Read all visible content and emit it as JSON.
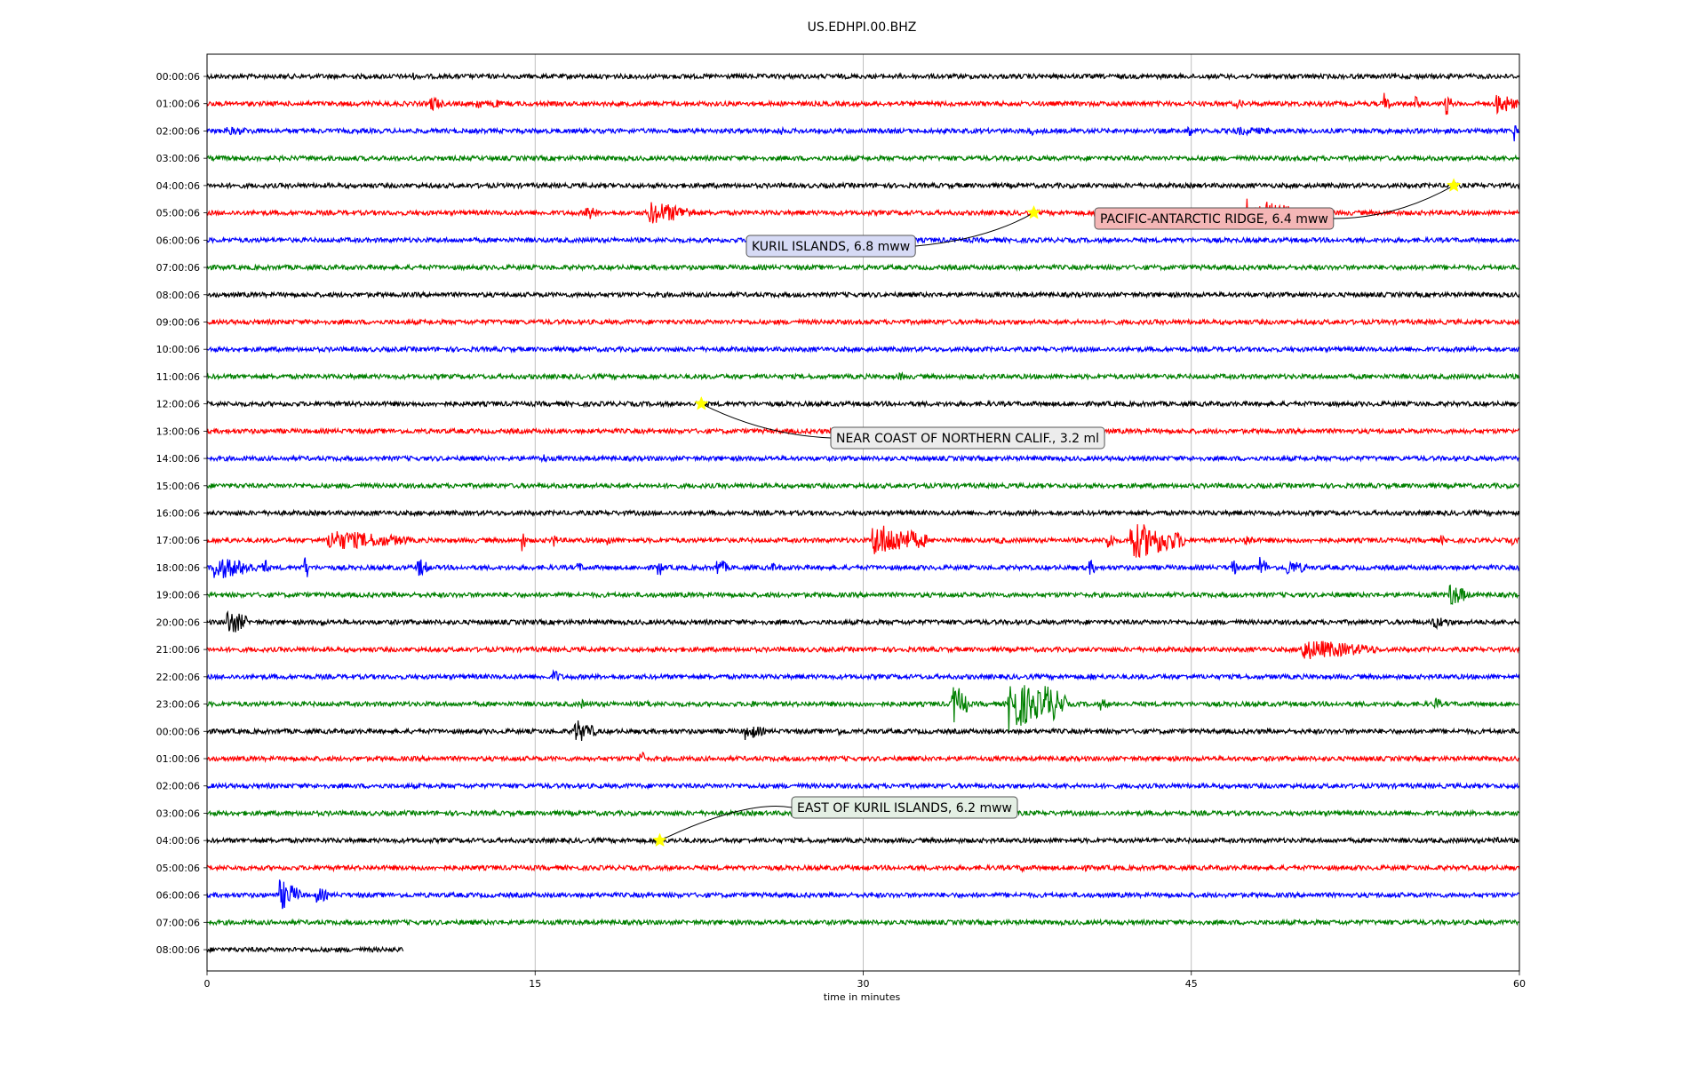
{
  "chart_data": {
    "type": "line",
    "title": "US.EDHPI.00.BHZ",
    "xlabel": "time in minutes",
    "ylabel": "",
    "xlim": [
      0,
      60
    ],
    "x_ticks": [
      0,
      15,
      30,
      45,
      60
    ],
    "grid": "vertical",
    "trace_colors": [
      "#000000",
      "#ff0000",
      "#0000ff",
      "#008000"
    ],
    "row_labels": [
      "00:00:06",
      "01:00:06",
      "02:00:06",
      "03:00:06",
      "04:00:06",
      "05:00:06",
      "06:00:06",
      "07:00:06",
      "08:00:06",
      "09:00:06",
      "10:00:06",
      "11:00:06",
      "12:00:06",
      "13:00:06",
      "14:00:06",
      "15:00:06",
      "16:00:06",
      "17:00:06",
      "18:00:06",
      "19:00:06",
      "20:00:06",
      "21:00:06",
      "22:00:06",
      "23:00:06",
      "00:00:06",
      "01:00:06",
      "02:00:06",
      "03:00:06",
      "04:00:06",
      "05:00:06",
      "06:00:06",
      "07:00:06",
      "08:00:06"
    ],
    "last_row_end_minute": 9,
    "events": [
      {
        "label": "PACIFIC-ANTARCTIC RIDGE, 6.4 mww",
        "row": 4,
        "minute": 57.0,
        "box_color": "#f4b6b6"
      },
      {
        "label": "KURIL ISLANDS, 6.8 mww",
        "row": 5,
        "minute": 37.8,
        "box_color": "#d6daf5"
      },
      {
        "label": "NEAR COAST OF NORTHERN CALIF., 3.2 ml",
        "row": 12,
        "minute": 22.6,
        "box_color": "#ececec"
      },
      {
        "label": "EAST OF KURIL ISLANDS, 6.2 mww",
        "row": 28,
        "minute": 20.7,
        "box_color": "#e4efe4"
      }
    ],
    "bursts": [
      {
        "row": 0,
        "minute": 9.4,
        "amp": 5,
        "dur": 0.2
      },
      {
        "row": 1,
        "minute": 10.2,
        "amp": 10,
        "dur": 0.6
      },
      {
        "row": 1,
        "minute": 12.3,
        "amp": 8,
        "dur": 0.4
      },
      {
        "row": 1,
        "minute": 13.0,
        "amp": 8,
        "dur": 0.4
      },
      {
        "row": 1,
        "minute": 47.0,
        "amp": 6,
        "dur": 0.6
      },
      {
        "row": 1,
        "minute": 53.8,
        "amp": 14,
        "dur": 0.3
      },
      {
        "row": 1,
        "minute": 55.2,
        "amp": 10,
        "dur": 0.3
      },
      {
        "row": 1,
        "minute": 56.6,
        "amp": 16,
        "dur": 0.3
      },
      {
        "row": 1,
        "minute": 58.9,
        "amp": 14,
        "dur": 1.0
      },
      {
        "row": 2,
        "minute": 0.7,
        "amp": 5,
        "dur": 2.5
      },
      {
        "row": 2,
        "minute": 26.1,
        "amp": 6,
        "dur": 0.4
      },
      {
        "row": 2,
        "minute": 37.6,
        "amp": 7,
        "dur": 0.3
      },
      {
        "row": 2,
        "minute": 44.8,
        "amp": 10,
        "dur": 0.3
      },
      {
        "row": 2,
        "minute": 47.0,
        "amp": 5,
        "dur": 3.0
      },
      {
        "row": 2,
        "minute": 59.7,
        "amp": 16,
        "dur": 0.2
      },
      {
        "row": 5,
        "minute": 17.3,
        "amp": 10,
        "dur": 0.6
      },
      {
        "row": 5,
        "minute": 20.1,
        "amp": 14,
        "dur": 2.2
      },
      {
        "row": 5,
        "minute": 47.3,
        "amp": 18,
        "dur": 2.5
      },
      {
        "row": 11,
        "minute": 31.6,
        "amp": 5,
        "dur": 0.6
      },
      {
        "row": 14,
        "minute": 15.3,
        "amp": 7,
        "dur": 0.3
      },
      {
        "row": 17,
        "minute": 0.8,
        "amp": 5,
        "dur": 0.4
      },
      {
        "row": 17,
        "minute": 5.5,
        "amp": 12,
        "dur": 3.8
      },
      {
        "row": 17,
        "minute": 14.3,
        "amp": 16,
        "dur": 0.3
      },
      {
        "row": 17,
        "minute": 15.7,
        "amp": 12,
        "dur": 0.3
      },
      {
        "row": 17,
        "minute": 18.2,
        "amp": 10,
        "dur": 0.3
      },
      {
        "row": 17,
        "minute": 30.4,
        "amp": 20,
        "dur": 2.5
      },
      {
        "row": 17,
        "minute": 36.2,
        "amp": 6,
        "dur": 0.3
      },
      {
        "row": 17,
        "minute": 41.1,
        "amp": 14,
        "dur": 0.4
      },
      {
        "row": 17,
        "minute": 42.2,
        "amp": 22,
        "dur": 2.5
      },
      {
        "row": 17,
        "minute": 47.4,
        "amp": 8,
        "dur": 0.6
      },
      {
        "row": 17,
        "minute": 56.4,
        "amp": 6,
        "dur": 0.3
      },
      {
        "row": 17,
        "minute": 59.6,
        "amp": 6,
        "dur": 0.3
      },
      {
        "row": 18,
        "minute": 0.3,
        "amp": 14,
        "dur": 2.0
      },
      {
        "row": 18,
        "minute": 2.5,
        "amp": 14,
        "dur": 0.3
      },
      {
        "row": 18,
        "minute": 4.4,
        "amp": 18,
        "dur": 0.3
      },
      {
        "row": 18,
        "minute": 9.6,
        "amp": 12,
        "dur": 0.6
      },
      {
        "row": 18,
        "minute": 16.9,
        "amp": 7,
        "dur": 0.4
      },
      {
        "row": 18,
        "minute": 20.6,
        "amp": 12,
        "dur": 0.3
      },
      {
        "row": 18,
        "minute": 23.3,
        "amp": 12,
        "dur": 0.5
      },
      {
        "row": 18,
        "minute": 25.8,
        "amp": 6,
        "dur": 0.5
      },
      {
        "row": 18,
        "minute": 40.3,
        "amp": 10,
        "dur": 0.4
      },
      {
        "row": 18,
        "minute": 46.8,
        "amp": 14,
        "dur": 0.3
      },
      {
        "row": 18,
        "minute": 48.1,
        "amp": 16,
        "dur": 0.4
      },
      {
        "row": 18,
        "minute": 49.3,
        "amp": 10,
        "dur": 1.0
      },
      {
        "row": 19,
        "minute": 56.8,
        "amp": 14,
        "dur": 0.9
      },
      {
        "row": 20,
        "minute": 0.9,
        "amp": 16,
        "dur": 1.0
      },
      {
        "row": 20,
        "minute": 5.2,
        "amp": 6,
        "dur": 0.2
      },
      {
        "row": 20,
        "minute": 56.0,
        "amp": 8,
        "dur": 1.0
      },
      {
        "row": 21,
        "minute": 50.0,
        "amp": 12,
        "dur": 3.5
      },
      {
        "row": 22,
        "minute": 15.8,
        "amp": 10,
        "dur": 0.4
      },
      {
        "row": 22,
        "minute": 40.4,
        "amp": 6,
        "dur": 0.3
      },
      {
        "row": 23,
        "minute": 17.1,
        "amp": 6,
        "dur": 0.3
      },
      {
        "row": 23,
        "minute": 20.1,
        "amp": 6,
        "dur": 0.3
      },
      {
        "row": 23,
        "minute": 24.8,
        "amp": 6,
        "dur": 0.3
      },
      {
        "row": 23,
        "minute": 34.0,
        "amp": 26,
        "dur": 0.8
      },
      {
        "row": 23,
        "minute": 36.6,
        "amp": 32,
        "dur": 1.8
      },
      {
        "row": 23,
        "minute": 38.3,
        "amp": 24,
        "dur": 1.0
      },
      {
        "row": 23,
        "minute": 40.8,
        "amp": 8,
        "dur": 0.4
      },
      {
        "row": 23,
        "minute": 56.1,
        "amp": 10,
        "dur": 0.3
      },
      {
        "row": 24,
        "minute": 16.8,
        "amp": 14,
        "dur": 1.0
      },
      {
        "row": 24,
        "minute": 24.6,
        "amp": 10,
        "dur": 0.9
      },
      {
        "row": 24,
        "minute": 28.6,
        "amp": 5,
        "dur": 1.0
      },
      {
        "row": 24,
        "minute": 40.8,
        "amp": 5,
        "dur": 0.2
      },
      {
        "row": 25,
        "minute": 19.7,
        "amp": 12,
        "dur": 0.4
      },
      {
        "row": 28,
        "minute": 58.8,
        "amp": 8,
        "dur": 0.4
      },
      {
        "row": 29,
        "minute": 5.7,
        "amp": 4,
        "dur": 0.3
      },
      {
        "row": 29,
        "minute": 37.2,
        "amp": 6,
        "dur": 0.3
      },
      {
        "row": 29,
        "minute": 40.0,
        "amp": 6,
        "dur": 0.3
      },
      {
        "row": 30,
        "minute": 3.3,
        "amp": 18,
        "dur": 1.0
      },
      {
        "row": 30,
        "minute": 5.0,
        "amp": 10,
        "dur": 0.6
      }
    ]
  }
}
